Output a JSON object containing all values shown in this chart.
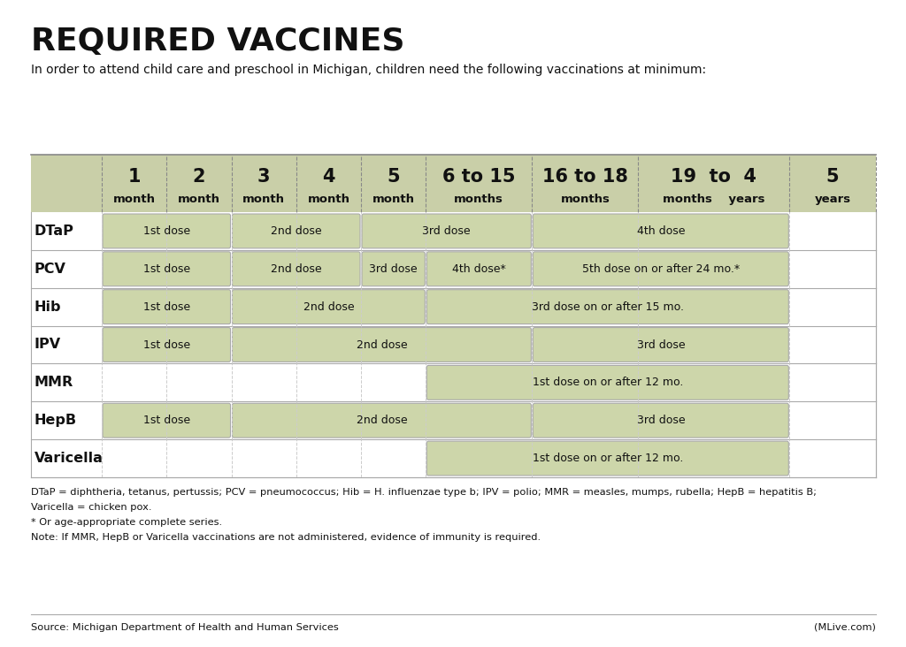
{
  "title": "REQUIRED VACCINES",
  "subtitle": "In order to attend child care and preschool in Michigan, children need the following vaccinations at minimum:",
  "bg_color": "#ffffff",
  "header_bg": "#c9cfa8",
  "cell_bg": "#cdd6aa",
  "text_color": "#111111",
  "col_headers": [
    {
      "line1": "1",
      "line2": "month"
    },
    {
      "line1": "2",
      "line2": "month"
    },
    {
      "line1": "3",
      "line2": "month"
    },
    {
      "line1": "4",
      "line2": "month"
    },
    {
      "line1": "5",
      "line2": "month"
    },
    {
      "line1": "6 to 15",
      "line2": "months"
    },
    {
      "line1": "16 to 18",
      "line2": "months"
    },
    {
      "line1": "19  to  4",
      "line2": "months    years"
    },
    {
      "line1": "5",
      "line2": "years"
    }
  ],
  "vaccines": [
    "DTaP",
    "PCV",
    "Hib",
    "IPV",
    "MMR",
    "HepB",
    "Varicella"
  ],
  "schedule": {
    "DTaP": [
      {
        "label": "1st dose",
        "cs": 1,
        "ce": 2
      },
      {
        "label": "2nd dose",
        "cs": 3,
        "ce": 4
      },
      {
        "label": "3rd dose",
        "cs": 5,
        "ce": 6
      },
      {
        "label": "4th dose",
        "cs": 7,
        "ce": 8
      }
    ],
    "PCV": [
      {
        "label": "1st dose",
        "cs": 1,
        "ce": 2
      },
      {
        "label": "2nd dose",
        "cs": 3,
        "ce": 4
      },
      {
        "label": "3rd dose",
        "cs": 5,
        "ce": 5
      },
      {
        "label": "4th dose*",
        "cs": 6,
        "ce": 6
      },
      {
        "label": "5th dose on or after 24 mo.*",
        "cs": 7,
        "ce": 8
      }
    ],
    "Hib": [
      {
        "label": "1st dose",
        "cs": 1,
        "ce": 2
      },
      {
        "label": "2nd dose",
        "cs": 3,
        "ce": 5
      },
      {
        "label": "3rd dose on or after 15 mo.",
        "cs": 6,
        "ce": 8
      }
    ],
    "IPV": [
      {
        "label": "1st dose",
        "cs": 1,
        "ce": 2
      },
      {
        "label": "2nd dose",
        "cs": 3,
        "ce": 6
      },
      {
        "label": "3rd dose",
        "cs": 7,
        "ce": 8
      }
    ],
    "MMR": [
      {
        "label": "1st dose on or after 12 mo.",
        "cs": 6,
        "ce": 8
      }
    ],
    "HepB": [
      {
        "label": "1st dose",
        "cs": 1,
        "ce": 2
      },
      {
        "label": "2nd dose",
        "cs": 3,
        "ce": 6
      },
      {
        "label": "3rd dose",
        "cs": 7,
        "ce": 8
      }
    ],
    "Varicella": [
      {
        "label": "1st dose on or after 12 mo.",
        "cs": 6,
        "ce": 8
      }
    ]
  },
  "footnotes": [
    "DTaP = diphtheria, tetanus, pertussis; PCV = pneumococcus; Hib = H. influenzae type b; IPV = polio; MMR = measles, mumps, rubella; HepB = hepatitis B;",
    "Varicella = chicken pox.",
    "* Or age-appropriate complete series.",
    "Note: If MMR, HepB or Varicella vaccinations are not administered, evidence of immunity is required."
  ],
  "source_left": "Source: Michigan Department of Health and Human Services",
  "source_right": "(MLive.com)"
}
